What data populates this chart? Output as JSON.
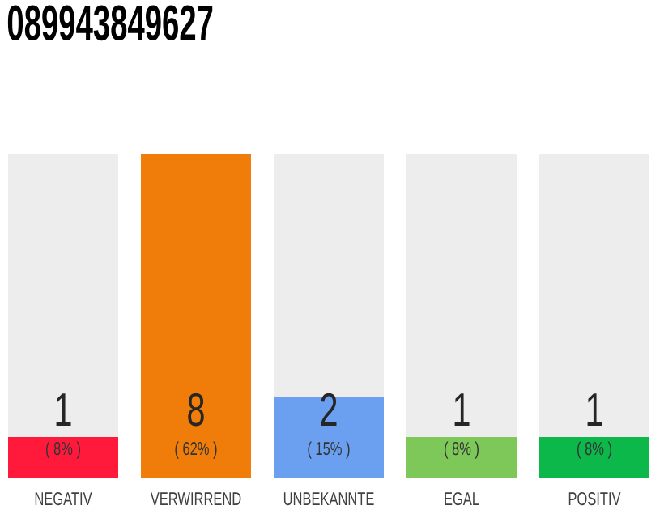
{
  "chart_data": {
    "type": "bar",
    "title": "089943849627",
    "categories": [
      "NEGATIV",
      "VERWIRREND",
      "UNBEKANNTE",
      "EGAL",
      "POSITIV"
    ],
    "values": [
      1,
      8,
      2,
      1,
      1
    ],
    "colors": [
      "#ff1a3c",
      "#f07c0a",
      "#6b9ff0",
      "#7ec85a",
      "#0cb84a"
    ],
    "ylim": [
      0,
      8
    ],
    "data_labels": true,
    "annotations": [
      "( 8% )",
      "( 62% )",
      "( 15% )",
      "( 8% )",
      "( 8% )"
    ]
  }
}
